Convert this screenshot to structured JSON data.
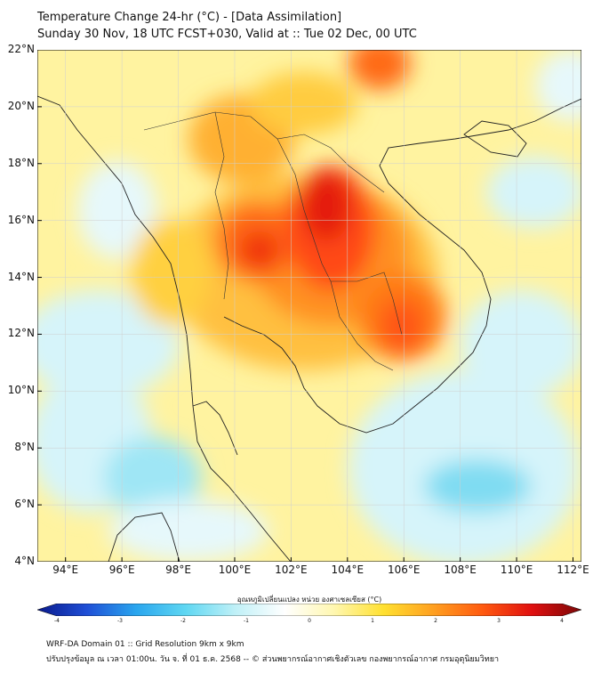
{
  "title": {
    "line1": "Temperature Change 24-hr (°C) - [Data Assimilation]",
    "line2": "Sunday 30 Nov, 18 UTC FCST+030, Valid at :: Tue 02 Dec, 00 UTC"
  },
  "map": {
    "lat_labels": [
      "22°N",
      "20°N",
      "18°N",
      "16°N",
      "14°N",
      "12°N",
      "10°N",
      "8°N",
      "6°N",
      "4°N"
    ],
    "lon_labels": [
      "94°E",
      "96°E",
      "98°E",
      "100°E",
      "102°E",
      "104°E",
      "106°E",
      "108°E",
      "110°E",
      "112°E"
    ],
    "lat_range": [
      4,
      22
    ],
    "lon_range": [
      93,
      112.3
    ]
  },
  "colorbar": {
    "title": "อุณหภูมิเปลี่ยนแปลง หน่วย องศาเซลเซียส (°C)",
    "ticks": [
      "-4",
      "-3",
      "-2",
      "-1",
      "0",
      "1",
      "2",
      "3",
      "4"
    ],
    "range": [
      -4,
      4
    ],
    "colors": [
      "#0a1a8c",
      "#1f4fd6",
      "#2aa6ee",
      "#5fd7f2",
      "#bff0f7",
      "#ffffff",
      "#fff7b0",
      "#ffe030",
      "#ffa020",
      "#ff5a10",
      "#e01010",
      "#7a0808"
    ]
  },
  "footer": {
    "line1": "WRF-DA Domain 01 :: Grid Resolution 9km x 9km",
    "line2": "ปรับปรุงข้อมูล ณ เวลา 01:00น. วัน จ. ที่ 01 ธ.ค. 2568 -- © ส่วนพยากรณ์อากาศเชิงตัวเลข กองพยากรณ์อากาศ กรมอุตุนิยมวิทยา"
  }
}
